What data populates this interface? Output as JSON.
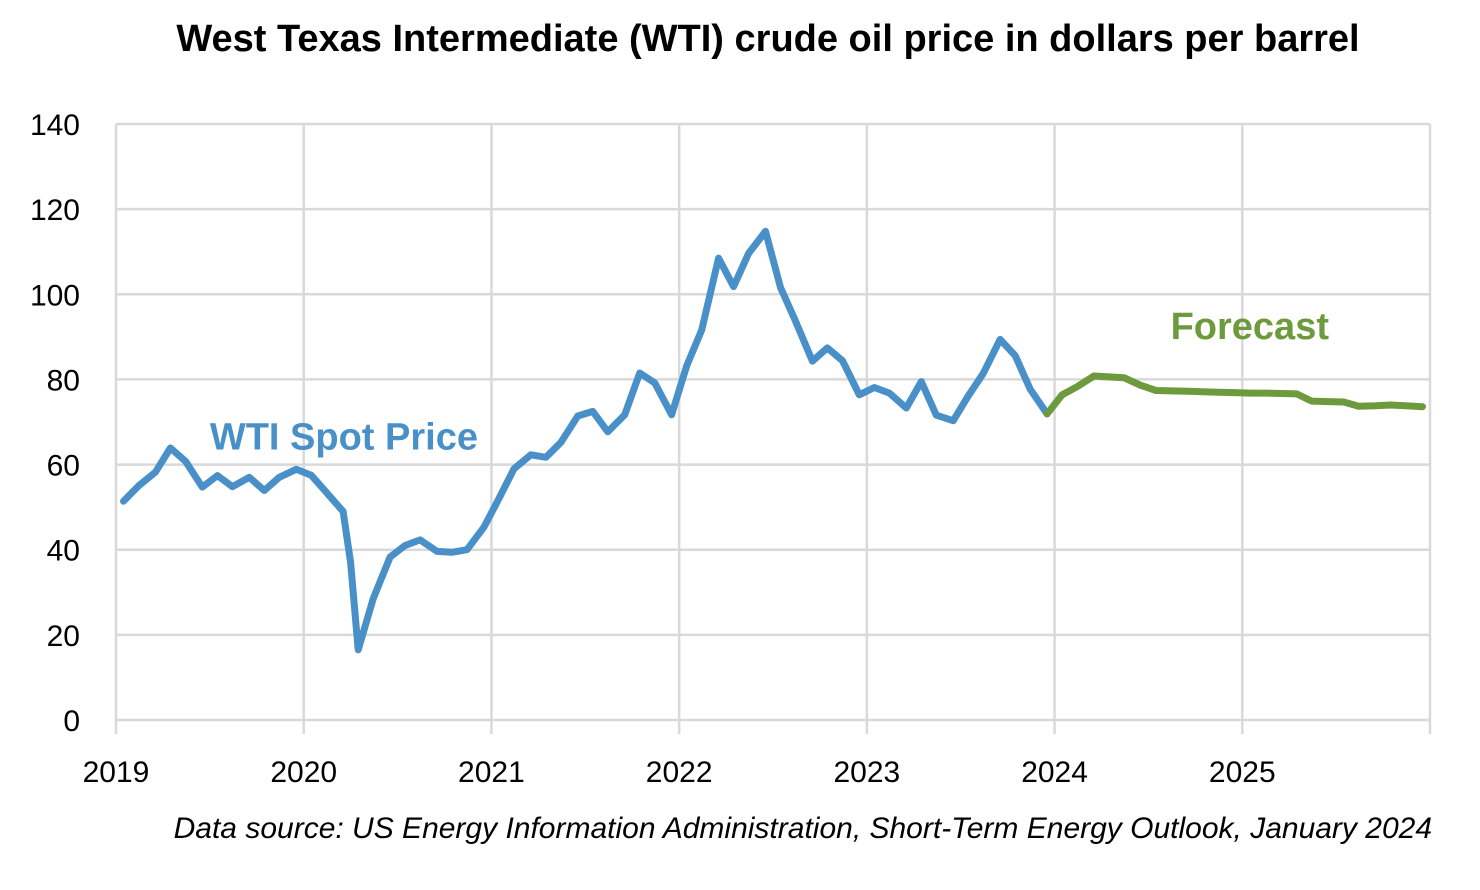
{
  "chart_data": {
    "type": "line",
    "title": "West Texas Intermediate (WTI) crude oil price in dollars per barrel",
    "source": "Data source: US Energy Information Administration, Short-Term Energy Outlook, January 2024",
    "xlabel": "",
    "ylabel": "",
    "ylim": [
      0,
      140
    ],
    "xlim": [
      2019.0,
      2026.0
    ],
    "y_ticks": [
      0,
      20,
      40,
      60,
      80,
      100,
      120,
      140
    ],
    "x_ticks": [
      {
        "label": "2019",
        "value": 2019.0
      },
      {
        "label": "2020",
        "value": 2020.0
      },
      {
        "label": "2021",
        "value": 2021.0
      },
      {
        "label": "2022",
        "value": 2022.0
      },
      {
        "label": "2023",
        "value": 2023.0
      },
      {
        "label": "2024",
        "value": 2024.0
      },
      {
        "label": "2025",
        "value": 2025.0
      }
    ],
    "grid": true,
    "series": [
      {
        "name": "WTI Spot Price",
        "color": "#4a90c8",
        "label_color": "#4a90c8",
        "x": [
          2019.04,
          2019.12,
          2019.21,
          2019.29,
          2019.37,
          2019.46,
          2019.54,
          2019.62,
          2019.71,
          2019.79,
          2019.87,
          2019.96,
          2020.04,
          2020.12,
          2020.21,
          2020.25,
          2020.29,
          2020.37,
          2020.46,
          2020.54,
          2020.62,
          2020.71,
          2020.79,
          2020.87,
          2020.96,
          2021.04,
          2021.12,
          2021.21,
          2021.29,
          2021.37,
          2021.46,
          2021.54,
          2021.62,
          2021.71,
          2021.79,
          2021.87,
          2021.96,
          2022.04,
          2022.12,
          2022.21,
          2022.29,
          2022.37,
          2022.46,
          2022.54,
          2022.62,
          2022.71,
          2022.79,
          2022.87,
          2022.96,
          2023.04,
          2023.12,
          2023.21,
          2023.29,
          2023.37,
          2023.46,
          2023.54,
          2023.62,
          2023.71,
          2023.79,
          2023.87,
          2023.96
        ],
        "values": [
          51.4,
          55,
          58.2,
          63.9,
          60.8,
          54.7,
          57.4,
          54.8,
          57.0,
          53.9,
          57.0,
          58.9,
          57.5,
          53.5,
          49.0,
          37.0,
          16.5,
          28.5,
          38.3,
          41.0,
          42.3,
          39.6,
          39.4,
          40.0,
          45.3,
          52.0,
          59.0,
          62.3,
          61.7,
          65.2,
          71.4,
          72.5,
          67.7,
          71.7,
          81.5,
          79.2,
          71.7,
          83.2,
          91.6,
          108.5,
          101.8,
          109.6,
          114.8,
          101.6,
          93.7,
          84.3,
          87.4,
          84.4,
          76.4,
          78.1,
          76.8,
          73.3,
          79.5,
          71.6,
          70.3,
          76.1,
          81.4,
          89.4,
          85.6,
          77.7,
          71.9
        ]
      },
      {
        "name": "Forecast",
        "color": "#6e9a3e",
        "label_color": "#6e9a3e",
        "x": [
          2023.96,
          2024.04,
          2024.12,
          2024.21,
          2024.29,
          2024.37,
          2024.46,
          2024.54,
          2024.62,
          2024.71,
          2024.79,
          2024.87,
          2024.96,
          2025.04,
          2025.12,
          2025.21,
          2025.29,
          2025.37,
          2025.46,
          2025.54,
          2025.62,
          2025.71,
          2025.79,
          2025.87,
          2025.96
        ],
        "values": [
          71.9,
          76.4,
          78.3,
          80.8,
          80.6,
          80.4,
          78.6,
          77.4,
          77.3,
          77.2,
          77.1,
          77.0,
          76.9,
          76.8,
          76.8,
          76.7,
          76.6,
          74.9,
          74.8,
          74.7,
          73.7,
          73.8,
          74.0,
          73.8,
          73.6
        ]
      }
    ]
  }
}
